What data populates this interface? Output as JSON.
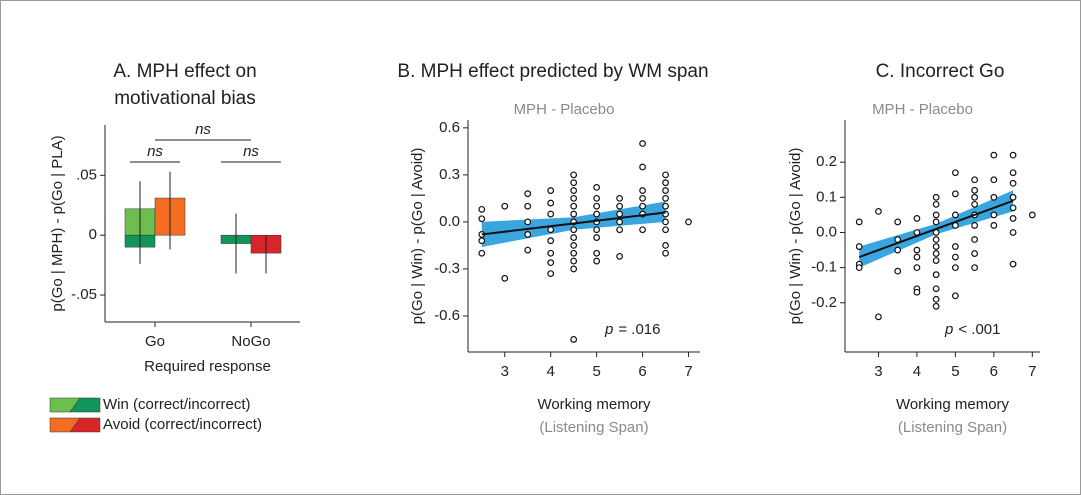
{
  "chart_data": [
    {
      "type": "bar",
      "title": [
        "A. MPH effect on",
        "motivational bias"
      ],
      "y_label": "p(Go | MPH) - p(Go | PLA)",
      "x_label": "Required response",
      "categories": [
        "Go",
        "NoGo"
      ],
      "ylim": [
        -0.0725,
        0.092
      ],
      "yticks": [
        {
          "value": -0.05,
          "label": "-.05"
        },
        0,
        {
          "value": 0.05,
          "label": ".05"
        }
      ],
      "annotations": [
        "ns",
        "ns",
        "ns"
      ],
      "series": [
        {
          "name": "Win (correct/incorrect)",
          "color_correct": "#6cbf4f",
          "color_incorrect": "#11955a",
          "correct": [
            0.022,
            null
          ],
          "incorrect": [
            -0.01,
            -0.007
          ],
          "low": [
            -0.024,
            -0.032
          ],
          "high": [
            0.045,
            0.018
          ]
        },
        {
          "name": "Avoid (correct/incorrect)",
          "color_correct": "#f26c22",
          "color_incorrect": "#d7252a",
          "correct": [
            0.031,
            null
          ],
          "incorrect": [
            0.0,
            -0.015
          ],
          "low": [
            -0.012,
            -0.032
          ],
          "high": [
            0.053,
            0.0
          ]
        }
      ]
    },
    {
      "type": "scatter",
      "title": "B. MPH effect predicted by WM span",
      "subtitle": "MPH - Placebo",
      "y_label": "p(Go | Win) - p(Go | Avoid)",
      "x_label": [
        "Working memory",
        "(Listening Span)"
      ],
      "stat": [
        "p",
        "= .016"
      ],
      "xlim": [
        2.2,
        7.25
      ],
      "xticks": [
        3,
        4,
        5,
        6,
        7
      ],
      "ylim": [
        -0.83,
        0.65
      ],
      "yticks": [
        0.6,
        0.3,
        {
          "value": 0,
          "label": "0.0"
        },
        -0.3,
        -0.6
      ],
      "band_color": "#3aa6e0",
      "line_color": "#111111",
      "x": [
        2.5,
        2.5,
        2.5,
        2.5,
        2.5,
        3,
        3,
        3.5,
        3.5,
        3.5,
        3.5,
        3.5,
        4,
        4,
        4,
        4,
        4,
        4,
        4,
        4,
        4.5,
        4.5,
        4.5,
        4.5,
        4.5,
        4.5,
        4.5,
        4.5,
        4.5,
        4.5,
        4.5,
        4.5,
        4.5,
        4.5,
        5,
        5,
        5,
        5,
        5,
        5,
        5,
        5,
        5,
        5.5,
        5.5,
        5.5,
        5.5,
        5.5,
        5.5,
        6,
        6,
        6,
        6,
        6,
        6,
        6,
        6.5,
        6.5,
        6.5,
        6.5,
        6.5,
        6.5,
        6.5,
        6.5,
        6.5,
        6.5,
        7
      ],
      "y": [
        0.08,
        0.02,
        -0.08,
        -0.12,
        -0.2,
        0.1,
        -0.36,
        0.18,
        0.1,
        0.0,
        -0.08,
        -0.18,
        0.2,
        0.12,
        0.05,
        -0.05,
        -0.12,
        -0.2,
        -0.26,
        -0.33,
        0.3,
        0.25,
        0.2,
        0.15,
        0.1,
        0.05,
        0.0,
        -0.05,
        -0.1,
        -0.15,
        -0.2,
        -0.25,
        -0.3,
        -0.75,
        0.22,
        0.15,
        0.1,
        0.05,
        0.0,
        -0.05,
        -0.1,
        -0.2,
        -0.25,
        0.15,
        0.1,
        0.05,
        0.0,
        -0.05,
        -0.22,
        0.5,
        0.35,
        0.2,
        0.15,
        0.1,
        0.05,
        -0.05,
        0.3,
        0.25,
        0.2,
        0.15,
        0.1,
        0.05,
        0.0,
        -0.05,
        -0.15,
        -0.2,
        0.0
      ],
      "fit_x": [
        2.5,
        4.5,
        6.5
      ],
      "fit_y": [
        -0.08,
        -0.01,
        0.06
      ],
      "fit_lower": [
        -0.16,
        -0.05,
        0.0
      ],
      "fit_upper": [
        0.0,
        0.03,
        0.13
      ]
    },
    {
      "type": "scatter",
      "title": "C. Incorrect Go",
      "subtitle": "MPH - Placebo",
      "y_label": "p(Go | Win) - p(Go | Avoid)",
      "x_label": [
        "Working memory",
        "(Listening Span)"
      ],
      "stat": [
        "p",
        "< .001"
      ],
      "xlim": [
        2.13,
        7.2
      ],
      "xticks": [
        3,
        4,
        5,
        6,
        7
      ],
      "ylim": [
        -0.34,
        0.32
      ],
      "yticks": [
        0.2,
        0.1,
        {
          "value": 0,
          "label": "0.0"
        },
        -0.1,
        -0.2
      ],
      "band_color": "#3aa6e0",
      "line_color": "#111111",
      "x": [
        2.5,
        2.5,
        2.5,
        2.5,
        3,
        3,
        3.5,
        3.5,
        3.5,
        3.5,
        4,
        4,
        4,
        4,
        4,
        4,
        4,
        4.5,
        4.5,
        4.5,
        4.5,
        4.5,
        4.5,
        4.5,
        4.5,
        4.5,
        4.5,
        4.5,
        4.5,
        4.5,
        5,
        5,
        5,
        5,
        5,
        5,
        5,
        5,
        5.5,
        5.5,
        5.5,
        5.5,
        5.5,
        5.5,
        5.5,
        5.5,
        5.5,
        6,
        6,
        6,
        6,
        6,
        6.5,
        6.5,
        6.5,
        6.5,
        6.5,
        6.5,
        6.5,
        6.5,
        7
      ],
      "y": [
        0.03,
        -0.04,
        -0.09,
        -0.1,
        0.06,
        -0.24,
        0.03,
        -0.02,
        -0.05,
        -0.11,
        0.04,
        0.0,
        -0.05,
        -0.07,
        -0.1,
        -0.16,
        -0.17,
        0.1,
        0.08,
        0.05,
        0.03,
        0.0,
        -0.02,
        -0.04,
        -0.06,
        -0.08,
        -0.12,
        -0.16,
        -0.19,
        -0.21,
        0.17,
        0.11,
        0.05,
        0.02,
        -0.04,
        -0.07,
        -0.1,
        -0.18,
        0.15,
        0.12,
        0.1,
        0.08,
        0.05,
        0.02,
        -0.02,
        -0.06,
        -0.1,
        0.22,
        0.15,
        0.1,
        0.05,
        0.02,
        0.22,
        0.17,
        0.14,
        0.1,
        0.07,
        0.04,
        0.0,
        -0.09,
        0.05
      ],
      "fit_x": [
        2.5,
        4.5,
        6.5
      ],
      "fit_y": [
        -0.07,
        0.01,
        0.09
      ],
      "fit_lower": [
        -0.1,
        -0.005,
        0.06
      ],
      "fit_upper": [
        -0.04,
        0.025,
        0.12
      ]
    }
  ]
}
